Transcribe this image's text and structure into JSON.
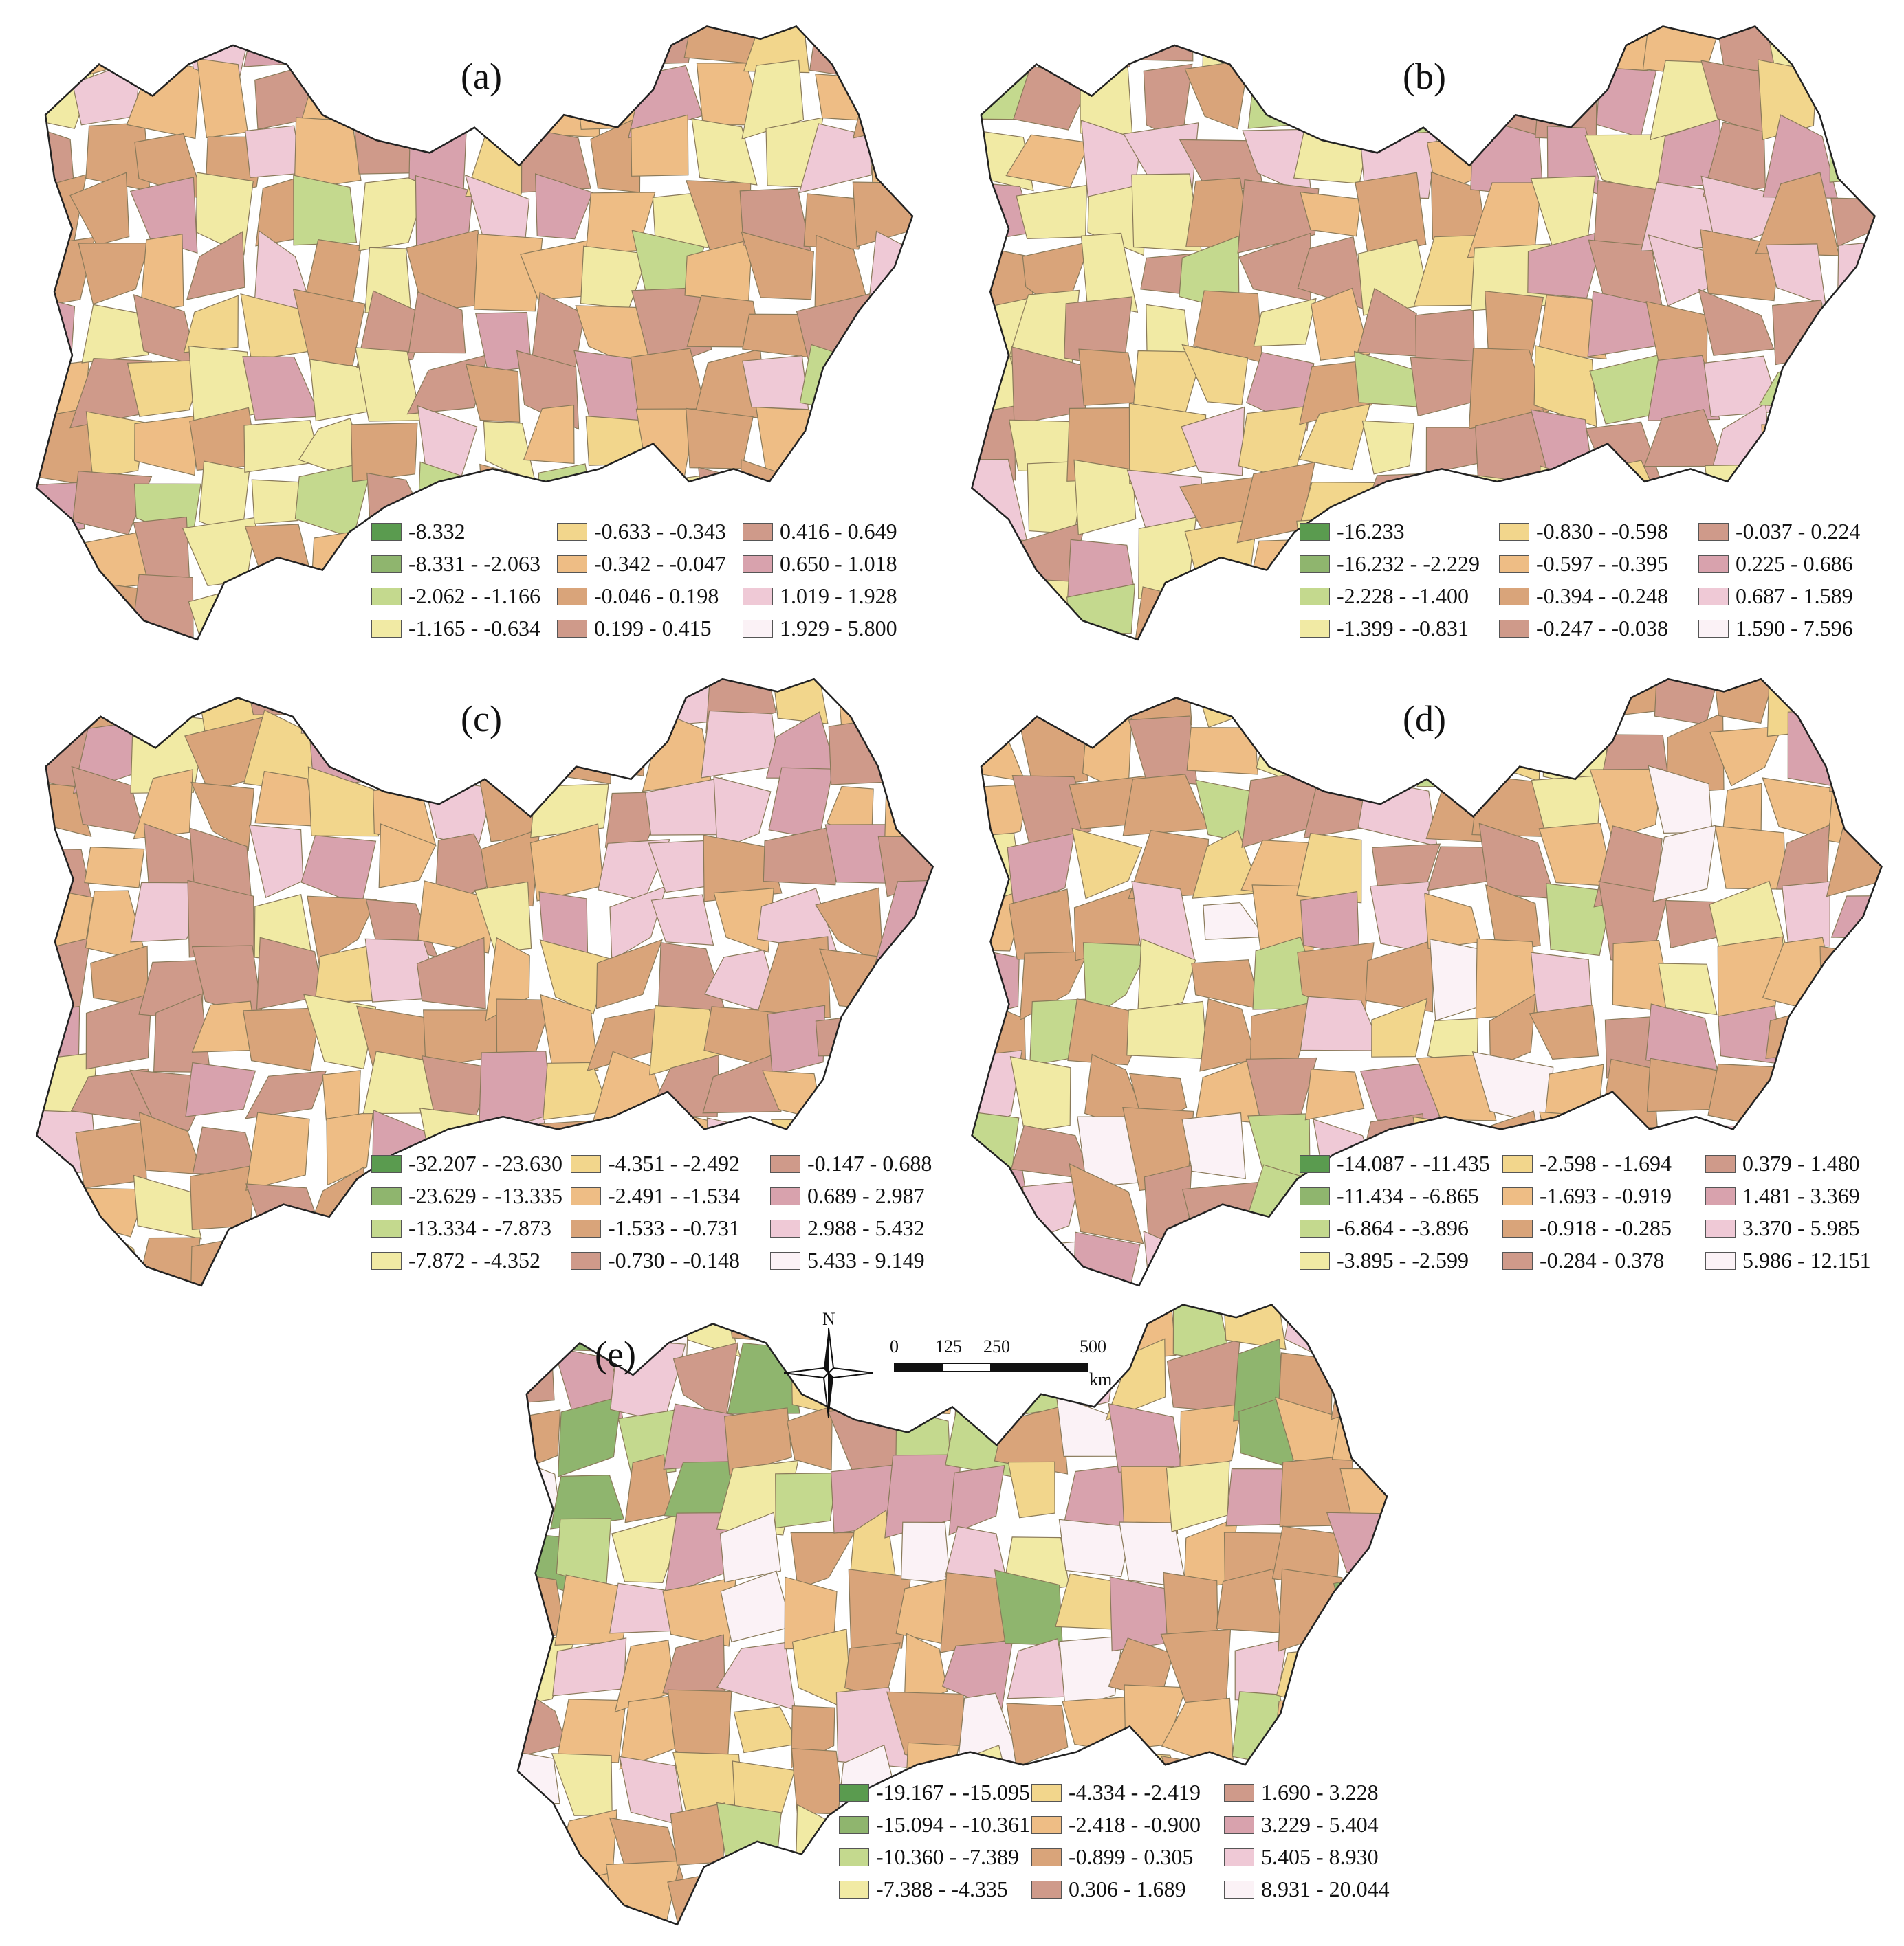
{
  "colors": {
    "c1": "#5a9b4f",
    "c2": "#8fb56e",
    "c3": "#c4d98e",
    "c4": "#f1eaa4",
    "c5": "#f2d68c",
    "c6": "#eebd85",
    "c7": "#d9a47a",
    "c8": "#cf9a8a",
    "c9": "#d8a2ad",
    "c10": "#efc9d6",
    "c11": "#fbf2f6",
    "border": "#8a7a5a",
    "outline": "#222222"
  },
  "compass": {
    "label": "N"
  },
  "scale": {
    "ticks": [
      "0",
      "125",
      "250",
      "500"
    ],
    "unit": "km"
  },
  "panels": [
    {
      "label": "(a)",
      "legend": [
        "-8.332",
        "-8.331 - -2.063",
        "-2.062 - -1.166",
        "-1.165 - -0.634",
        "-0.633 - -0.343",
        "-0.342 - -0.047",
        "-0.046 - 0.198",
        "0.199 - 0.415",
        "0.416 - 0.649",
        "0.650 - 1.018",
        "1.019 - 1.928",
        "1.929 - 5.800"
      ]
    },
    {
      "label": "(b)",
      "legend": [
        "-16.233",
        "-16.232 - -2.229",
        "-2.228 - -1.400",
        "-1.399 - -0.831",
        "-0.830 - -0.598",
        "-0.597 - -0.395",
        "-0.394 - -0.248",
        "-0.247 - -0.038",
        "-0.037 - 0.224",
        "0.225 - 0.686",
        "0.687 - 1.589",
        "1.590 - 7.596"
      ]
    },
    {
      "label": "(c)",
      "legend": [
        "-32.207 - -23.630",
        "-23.629 - -13.335",
        "-13.334 - -7.873",
        "-7.872 - -4.352",
        "-4.351 - -2.492",
        "-2.491 - -1.534",
        "-1.533 - -0.731",
        "-0.730 - -0.148",
        "-0.147 - 0.688",
        "0.689 - 2.987",
        "2.988 - 5.432",
        "5.433 - 9.149"
      ]
    },
    {
      "label": "(d)",
      "legend": [
        "-14.087 - -11.435",
        "-11.434 - -6.865",
        "-6.864 - -3.896",
        "-3.895 - -2.599",
        "-2.598 - -1.694",
        "-1.693 - -0.919",
        "-0.918 - -0.285",
        "-0.284 - 0.378",
        "0.379 - 1.480",
        "1.481 - 3.369",
        "3.370 - 5.985",
        "5.986 - 12.151"
      ]
    },
    {
      "label": "(e)",
      "legend": [
        "-19.167 - -15.095",
        "-15.094 - -10.361",
        "-10.360 - -7.389",
        "-7.388 - -4.335",
        "-4.334 - -2.419",
        "-2.418 - -0.900",
        "-0.899 - 0.305",
        "0.306 - 1.689",
        "1.690 - 3.228",
        "3.229 - 5.404",
        "5.405 - 8.930",
        "8.931 - 20.044"
      ]
    }
  ]
}
